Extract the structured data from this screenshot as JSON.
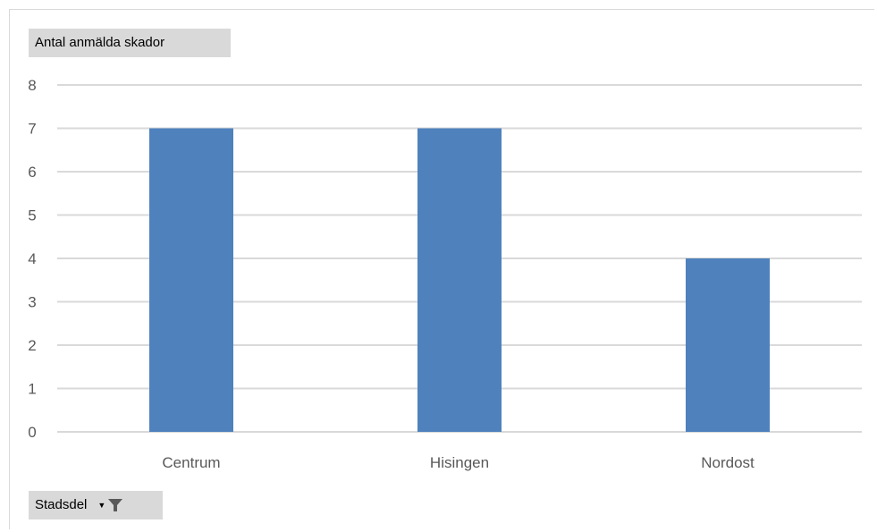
{
  "value_field_button": "Antal anmälda skador",
  "axis_field_button": "Stadsdel",
  "icons": {
    "dropdown": "dropdown-arrow-icon",
    "filter": "filter-icon"
  },
  "colors": {
    "bar": "#4f81bd",
    "gridline": "#d9d9d9",
    "button_bg": "#d9d9d9",
    "tick_text": "#595959"
  },
  "chart_data": {
    "type": "bar",
    "categories": [
      "Centrum",
      "Hisingen",
      "Nordost"
    ],
    "values": [
      7,
      7,
      4
    ],
    "title": "",
    "xlabel": "",
    "ylabel": "",
    "ylim": [
      0,
      8
    ],
    "yticks": [
      "0",
      "1",
      "2",
      "3",
      "4",
      "5",
      "6",
      "7",
      "8"
    ],
    "grid": true,
    "legend": "none"
  }
}
